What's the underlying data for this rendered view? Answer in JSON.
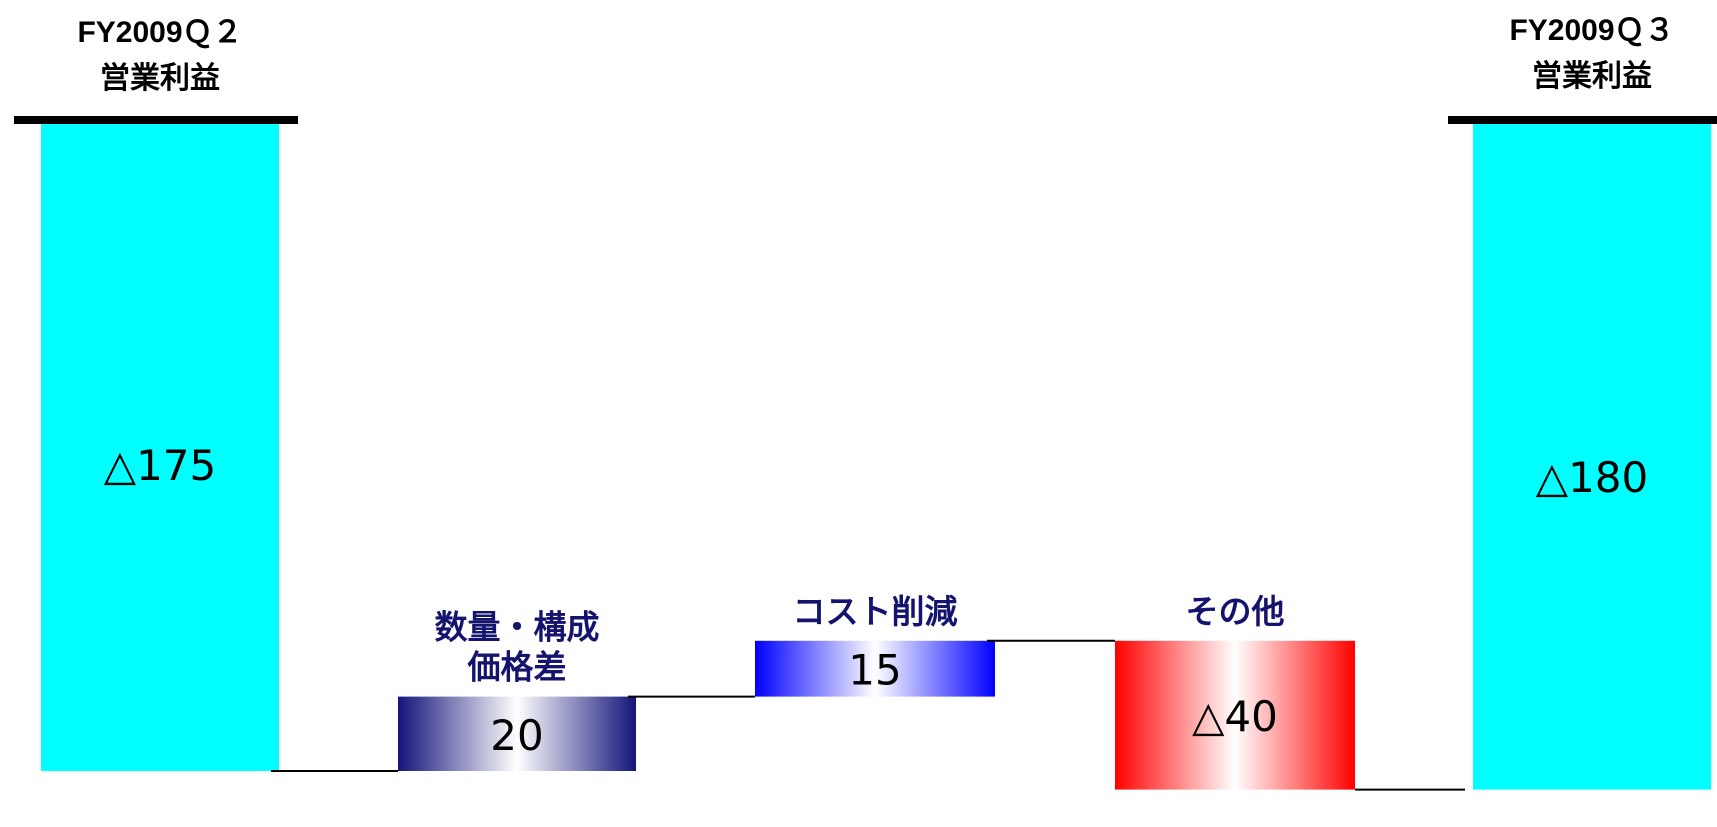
{
  "chart_data": {
    "type": "bar",
    "subtype": "waterfall",
    "title": "",
    "xlabel": "",
    "ylabel": "",
    "ylim": [
      -190,
      0
    ],
    "grid": false,
    "legend": "none",
    "start": {
      "label_line1": "FY2009Ｑ２",
      "label_line2": "営業利益",
      "value": -175,
      "value_label": "△175",
      "color": "#00ffff"
    },
    "steps": [
      {
        "label_lines": [
          "数量・構成",
          "価格差"
        ],
        "value": 20,
        "value_label": "20",
        "style": "navy-gradient",
        "color": "#14147a"
      },
      {
        "label_lines": [
          "コスト削減"
        ],
        "value": 15,
        "value_label": "15",
        "style": "blue-gradient",
        "color": "#0000ff"
      },
      {
        "label_lines": [
          "その他"
        ],
        "value": -40,
        "value_label": "△40",
        "style": "red-gradient",
        "color": "#ff0000"
      }
    ],
    "end": {
      "label_line1": "FY2009Ｑ３",
      "label_line2": "営業利益",
      "value": -180,
      "value_label": "△180",
      "color": "#00ffff"
    },
    "label_color": "#14146e"
  }
}
